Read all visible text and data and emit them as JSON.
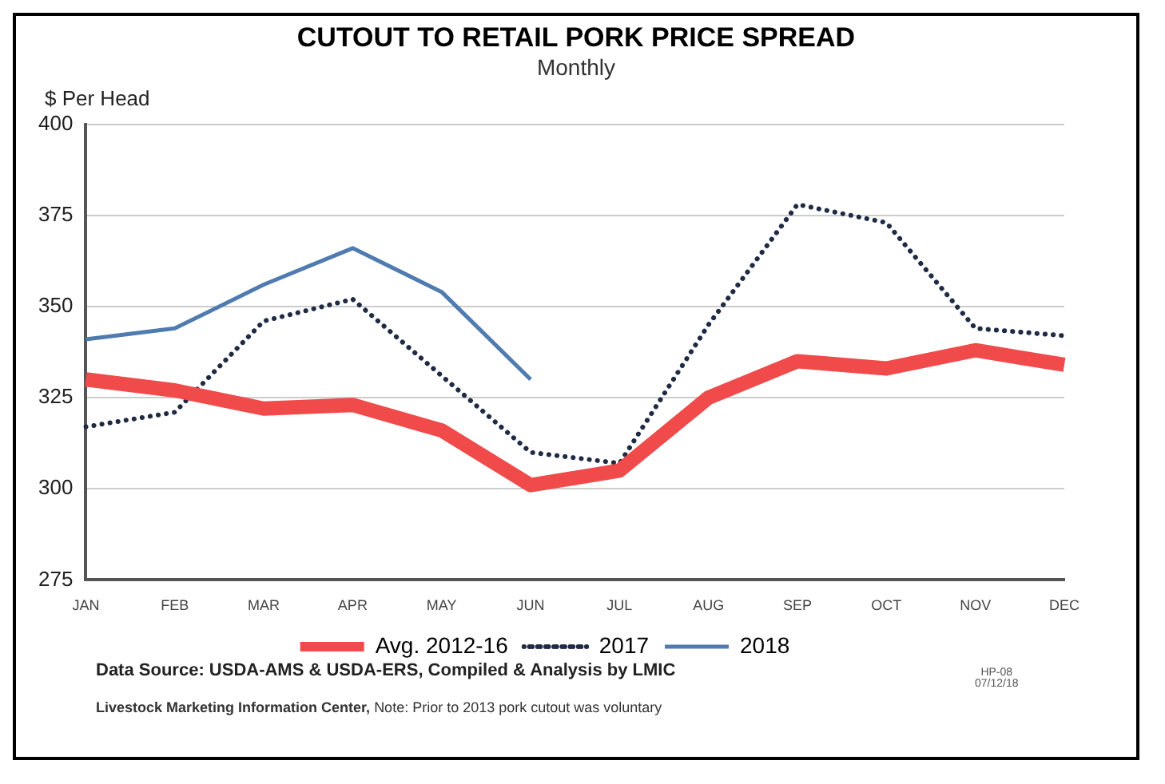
{
  "chart_data": {
    "type": "line",
    "title": "CUTOUT TO RETAIL PORK PRICE SPREAD",
    "subtitle": "Monthly",
    "ylabel": "$ Per Head",
    "categories": [
      "JAN",
      "FEB",
      "MAR",
      "APR",
      "MAY",
      "JUN",
      "JUL",
      "AUG",
      "SEP",
      "OCT",
      "NOV",
      "DEC"
    ],
    "series": [
      {
        "name": "Avg. 2012-16",
        "color": "#f04a4a",
        "values": [
          330,
          327,
          322,
          323,
          316,
          301,
          305,
          325,
          335,
          333,
          338,
          334
        ]
      },
      {
        "name": "2017",
        "color": "#1f2a44",
        "line_style": "dotted",
        "values": [
          317,
          321,
          346,
          352,
          331,
          310,
          307,
          345,
          378,
          373,
          344,
          342
        ]
      },
      {
        "name": "2018",
        "color": "#4f7bb0",
        "values": [
          341,
          344,
          356,
          366,
          354,
          330,
          null,
          null,
          null,
          null,
          null,
          null
        ]
      }
    ],
    "ylim": [
      275,
      400
    ],
    "yticks": [
      275,
      300,
      325,
      350,
      375,
      400
    ],
    "grid": "y",
    "legend": "bottom",
    "marker": "none",
    "annotations": [
      "Data Source:  USDA-AMS & USDA-ERS, Compiled & Analysis by LMIC",
      "Livestock Marketing Information Center,",
      "Note: Prior to 2013 pork cutout was voluntary",
      "HP-08",
      "07/12/18"
    ]
  }
}
